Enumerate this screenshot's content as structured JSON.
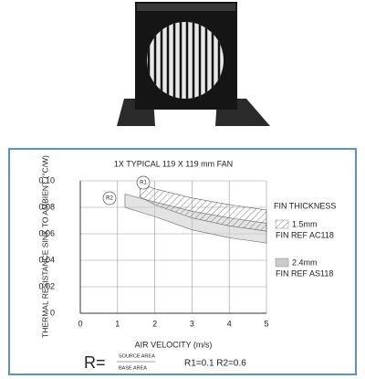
{
  "chart_data": {
    "type": "band",
    "title": "1X TYPICAL 119 X 119 mm FAN",
    "xlabel": "AIR VELOCITY (m/s)",
    "ylabel": "THERMAL RESISTANCE SINK TO AMBIENT (°C/W)",
    "xlim": [
      0,
      5
    ],
    "xticks": [
      0,
      1,
      2,
      3,
      4,
      5
    ],
    "ylim": [
      0,
      0.1
    ],
    "yticks": [
      0,
      0.02,
      0.04,
      0.06,
      0.08,
      {
        "value": 0.1,
        "label": "0.10"
      }
    ],
    "grid": true,
    "legend_title": "FIN THICKNESS",
    "annotations": [
      "R1",
      "R2"
    ],
    "series": [
      {
        "name": "1.5mm",
        "sub": "FIN REF AC118",
        "pattern": "hatch",
        "color": "#777777",
        "x": [
          1.6,
          2,
          3,
          4,
          5
        ],
        "high": [
          0.098,
          0.094,
          0.087,
          0.082,
          0.078
        ],
        "low": [
          0.088,
          0.082,
          0.072,
          0.066,
          0.062
        ]
      },
      {
        "name": "2.4mm",
        "sub": "FIN REF AS118",
        "pattern": "solid",
        "color": "#cccccc",
        "x": [
          1.2,
          2,
          3,
          4,
          5
        ],
        "high": [
          0.09,
          0.084,
          0.077,
          0.072,
          0.068
        ],
        "low": [
          0.08,
          0.073,
          0.063,
          0.057,
          0.053
        ]
      }
    ],
    "formula": {
      "lhs": "R=",
      "num": "SOURCE AREA",
      "den": "BASE AREA",
      "note": "R1=0.1  R2=0.6"
    }
  }
}
